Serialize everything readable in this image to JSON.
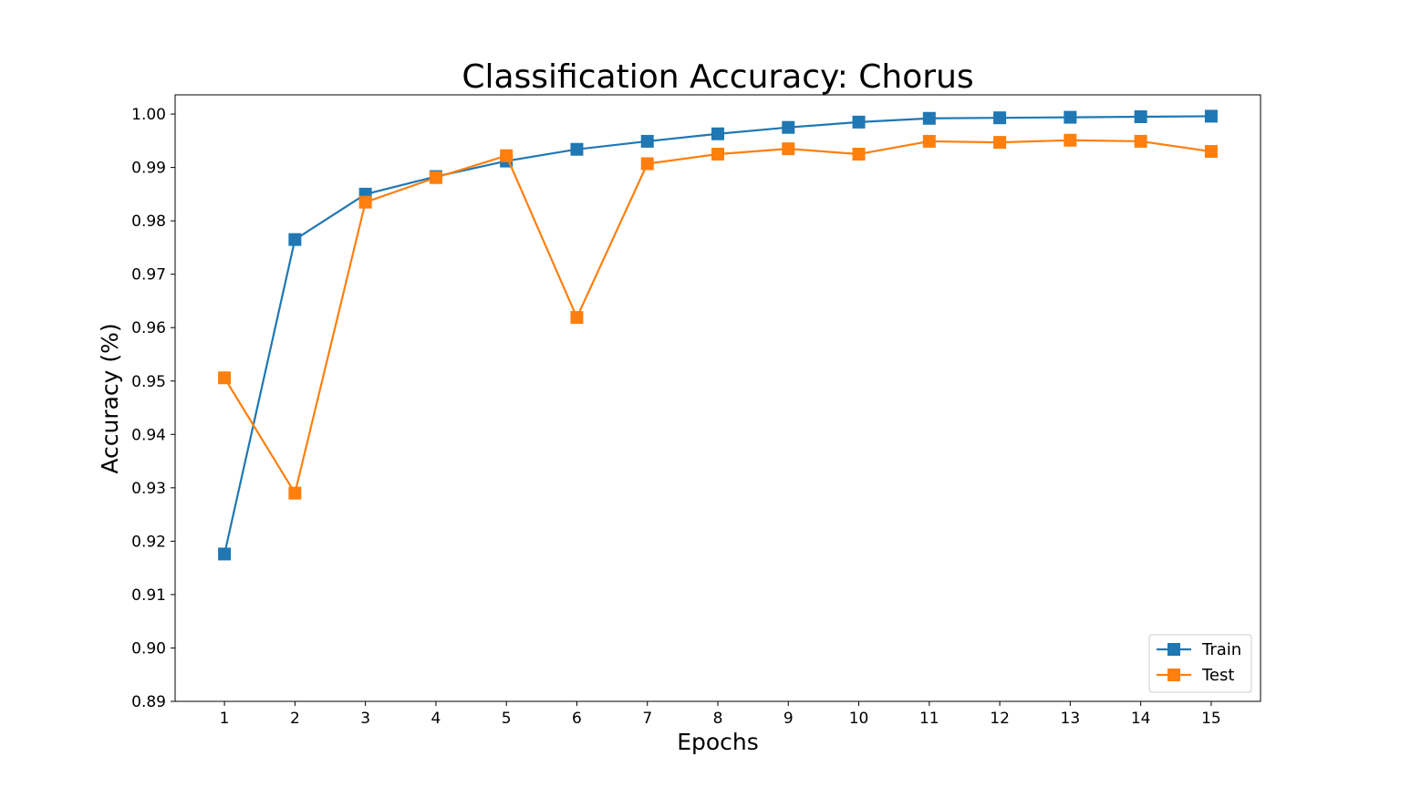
{
  "chart_data": {
    "type": "line",
    "title": "Classification Accuracy: Chorus",
    "xlabel": "Epochs",
    "ylabel": "Accuracy (%)",
    "x": [
      1,
      2,
      3,
      4,
      5,
      6,
      7,
      8,
      9,
      10,
      11,
      12,
      13,
      14,
      15
    ],
    "xticks": [
      "1",
      "2",
      "3",
      "4",
      "5",
      "6",
      "7",
      "8",
      "9",
      "10",
      "11",
      "12",
      "13",
      "14",
      "15"
    ],
    "xlim": [
      0.3,
      15.7
    ],
    "ylim": [
      0.89,
      1.0036
    ],
    "yticks": [
      "0.89",
      "0.90",
      "0.91",
      "0.92",
      "0.93",
      "0.94",
      "0.95",
      "0.96",
      "0.97",
      "0.98",
      "0.99",
      "1.00"
    ],
    "yticks_values": [
      0.89,
      0.9,
      0.91,
      0.92,
      0.93,
      0.94,
      0.95,
      0.96,
      0.97,
      0.98,
      0.99,
      1.0
    ],
    "grid": false,
    "legend_position": "bottom-right",
    "series": [
      {
        "name": "Train",
        "color": "#1f77b4",
        "marker": "square",
        "values": [
          0.9176,
          0.9765,
          0.985,
          0.9883,
          0.9912,
          0.9934,
          0.9949,
          0.9963,
          0.9975,
          0.9985,
          0.9992,
          0.9993,
          0.9994,
          0.9995,
          0.9996
        ]
      },
      {
        "name": "Test",
        "color": "#ff7f0e",
        "marker": "square",
        "values": [
          0.9506,
          0.929,
          0.9835,
          0.9881,
          0.9922,
          0.9619,
          0.9907,
          0.9925,
          0.9935,
          0.9925,
          0.9949,
          0.9947,
          0.9951,
          0.9949,
          0.993
        ]
      }
    ]
  }
}
